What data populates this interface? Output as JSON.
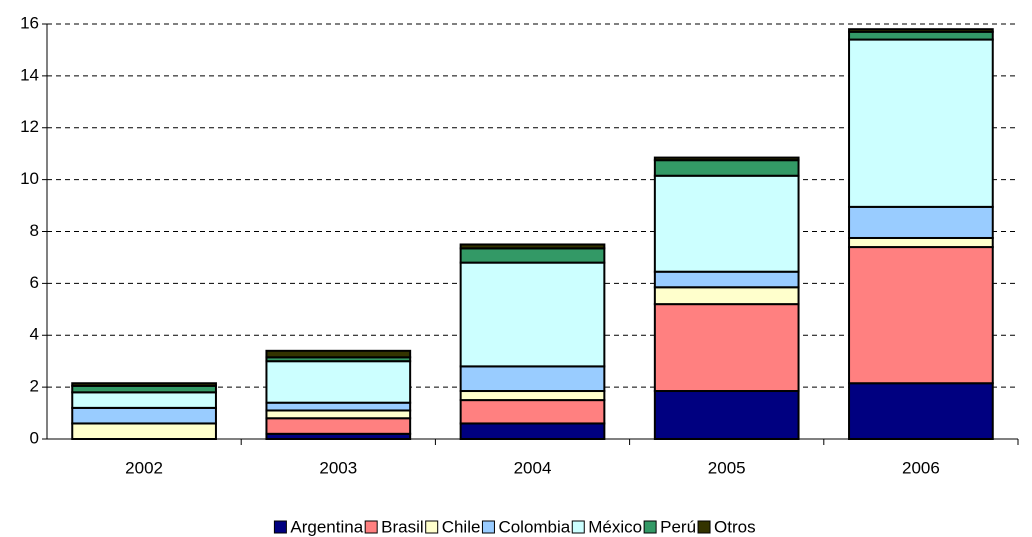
{
  "chart_data": {
    "type": "stacked_bar",
    "categories": [
      "2002",
      "2003",
      "2004",
      "2005",
      "2006"
    ],
    "series": [
      {
        "name": "Argentina",
        "color": "#000080",
        "values": [
          0,
          0.2,
          0.6,
          1.85,
          2.15
        ]
      },
      {
        "name": "Brasil",
        "color": "#ff8080",
        "values": [
          0,
          0.6,
          0.9,
          3.35,
          5.25
        ]
      },
      {
        "name": "Chile",
        "color": "#ffffcc",
        "values": [
          0.6,
          0.3,
          0.35,
          0.65,
          0.35
        ]
      },
      {
        "name": "Colombia",
        "color": "#99ccff",
        "values": [
          0.6,
          0.3,
          0.95,
          0.6,
          1.2
        ]
      },
      {
        "name": "México",
        "color": "#ccffff",
        "values": [
          0.6,
          1.6,
          4.0,
          3.7,
          6.45
        ]
      },
      {
        "name": "Perú",
        "color": "#339966",
        "values": [
          0.25,
          0.15,
          0.55,
          0.6,
          0.3
        ]
      },
      {
        "name": "Otros",
        "color": "#333300",
        "values": [
          0.1,
          0.25,
          0.15,
          0.1,
          0.1
        ]
      }
    ],
    "ylim": [
      0,
      16
    ],
    "yticks": [
      0,
      2,
      4,
      6,
      8,
      10,
      12,
      14,
      16
    ],
    "grid": true,
    "legend": "bottom"
  }
}
